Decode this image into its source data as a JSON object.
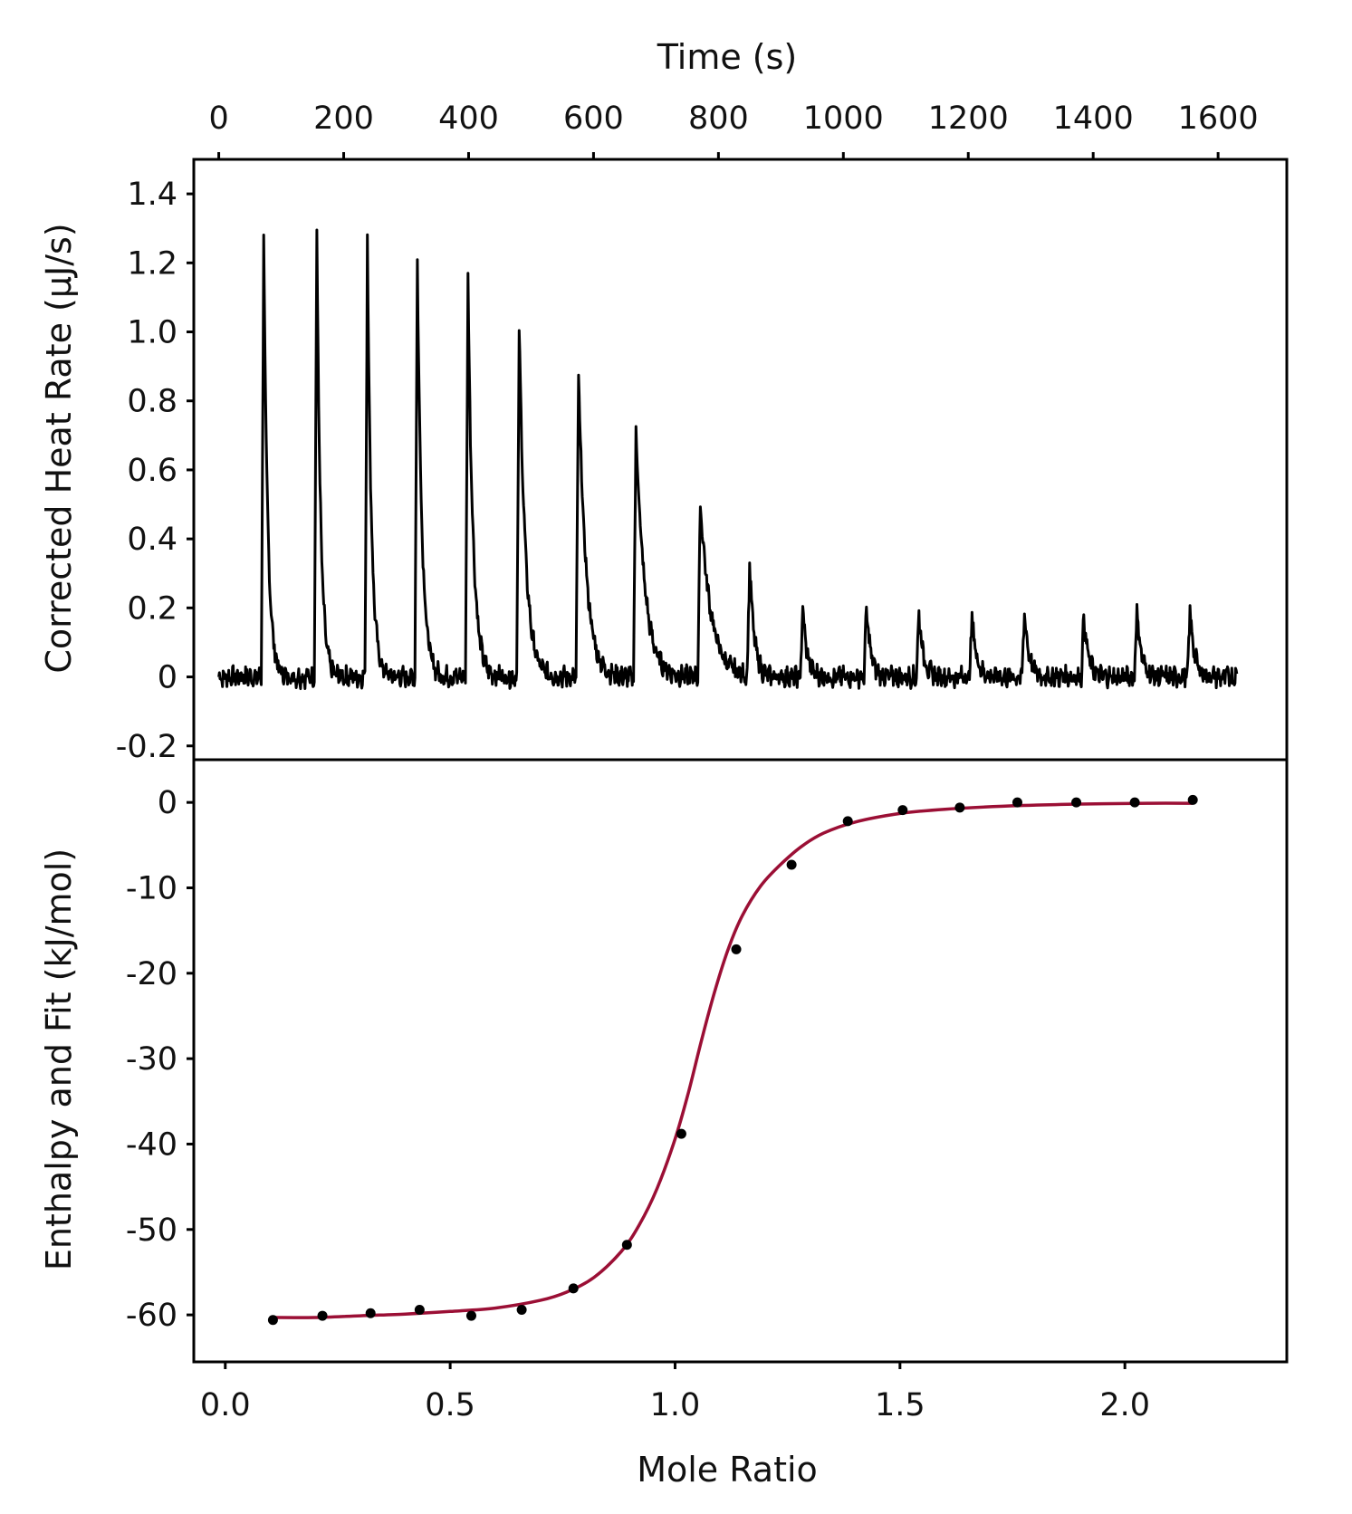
{
  "chart_data": [
    {
      "type": "line",
      "panel": "top",
      "xlabel": "Time (s)",
      "ylabel": "Corrected Heat Rate (µJ/s)",
      "xlim": [
        -40,
        1710
      ],
      "ylim": [
        -0.24,
        1.5
      ],
      "xticks": [
        0,
        200,
        400,
        600,
        800,
        1000,
        1200,
        1400,
        1600
      ],
      "xtick_labels": [
        "0",
        "200",
        "400",
        "600",
        "800",
        "1000",
        "1200",
        "1400",
        "1600"
      ],
      "yticks": [
        -0.2,
        0,
        0.2,
        0.4,
        0.6,
        0.8,
        1.0,
        1.2,
        1.4
      ],
      "ytick_labels": [
        "-0.2",
        "0",
        "0.2",
        "0.4",
        "0.6",
        "0.8",
        "1.0",
        "1.2",
        "1.4"
      ],
      "trace_range": [
        0,
        1630
      ],
      "injections": [
        {
          "t": 72,
          "peak": 1.28
        },
        {
          "t": 157,
          "peak": 1.3
        },
        {
          "t": 238,
          "peak": 1.28
        },
        {
          "t": 318,
          "peak": 1.21
        },
        {
          "t": 399,
          "peak": 1.15
        },
        {
          "t": 481,
          "peak": 1.02
        },
        {
          "t": 576,
          "peak": 0.88
        },
        {
          "t": 668,
          "peak": 0.72
        },
        {
          "t": 771,
          "peak": 0.51
        },
        {
          "t": 850,
          "peak": 0.33
        },
        {
          "t": 935,
          "peak": 0.2
        },
        {
          "t": 1037,
          "peak": 0.2
        },
        {
          "t": 1121,
          "peak": 0.19
        },
        {
          "t": 1206,
          "peak": 0.18
        },
        {
          "t": 1290,
          "peak": 0.19
        },
        {
          "t": 1385,
          "peak": 0.18
        },
        {
          "t": 1470,
          "peak": 0.2
        },
        {
          "t": 1555,
          "peak": 0.2
        }
      ],
      "color": "#000000"
    },
    {
      "type": "scatter",
      "panel": "bottom",
      "xlabel": "Mole Ratio",
      "ylabel": "Enthalpy and Fit (kJ/mol)",
      "xlim": [
        -0.07,
        2.36
      ],
      "ylim": [
        -65.5,
        5
      ],
      "xticks": [
        0.0,
        0.5,
        1.0,
        1.5,
        2.0
      ],
      "xtick_labels": [
        "0.0",
        "0.5",
        "1.0",
        "1.5",
        "2.0"
      ],
      "yticks": [
        0,
        -10,
        -20,
        -30,
        -40,
        -50,
        -60
      ],
      "ytick_labels": [
        "0",
        "-10",
        "-20",
        "-30",
        "-40",
        "-50",
        "-60"
      ],
      "series": [
        {
          "type": "scatter",
          "color": "#000000",
          "x": [
            0.106,
            0.216,
            0.323,
            0.432,
            0.547,
            0.659,
            0.774,
            0.893,
            1.014,
            1.136,
            1.259,
            1.384,
            1.506,
            1.633,
            1.761,
            1.892,
            2.022,
            2.151
          ],
          "y": [
            -60.6,
            -60.1,
            -59.8,
            -59.4,
            -60.1,
            -59.4,
            -56.9,
            -51.8,
            -38.8,
            -17.2,
            -7.3,
            -2.2,
            -0.9,
            -0.6,
            0.0,
            0.0,
            0.0,
            0.3
          ]
        },
        {
          "type": "line",
          "color": "#9b0f35",
          "x": [
            0.1,
            0.2,
            0.3,
            0.4,
            0.5,
            0.6,
            0.7,
            0.76,
            0.82,
            0.88,
            0.92,
            0.96,
            1.0,
            1.03,
            1.06,
            1.09,
            1.12,
            1.15,
            1.19,
            1.23,
            1.28,
            1.33,
            1.4,
            1.5,
            1.6,
            1.75,
            1.9,
            2.05,
            2.15
          ],
          "y": [
            -60.3,
            -60.3,
            -60.1,
            -59.9,
            -59.6,
            -59.2,
            -58.3,
            -57.3,
            -55.6,
            -52.6,
            -49.5,
            -45.2,
            -39.4,
            -33.9,
            -27.6,
            -21.8,
            -16.9,
            -13.2,
            -9.8,
            -7.5,
            -5.2,
            -3.6,
            -2.3,
            -1.3,
            -0.8,
            -0.4,
            -0.2,
            -0.1,
            -0.1
          ]
        }
      ]
    }
  ]
}
